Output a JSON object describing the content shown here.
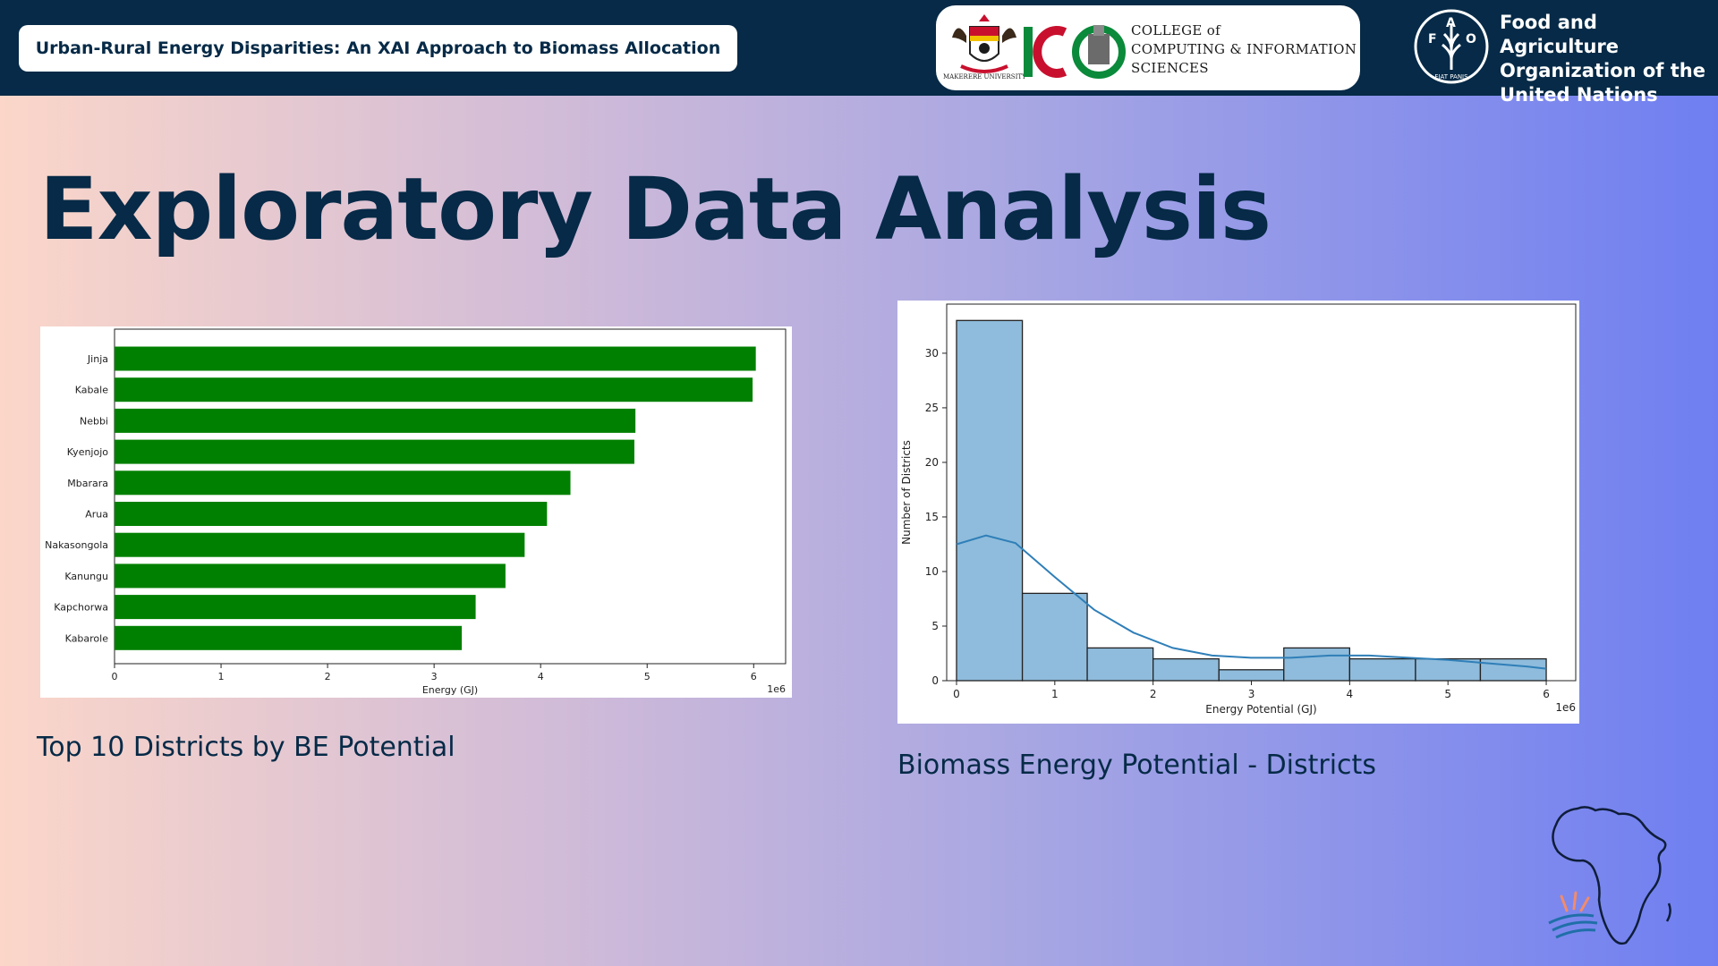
{
  "header": {
    "presentation_title": "Urban-Rural Energy Disparities: An XAI Approach to Biomass Allocation",
    "college_lines": [
      "COLLEGE of",
      "COMPUTING & INFORMATION",
      "SCIENCES"
    ],
    "university_label": "MAKERERE UNIVERSITY",
    "fao_lines": [
      "Food and Agriculture",
      "Organization of the",
      "United Nations"
    ],
    "fao_letters": [
      "F",
      "A",
      "O"
    ],
    "fao_motto": "FIAT PANIS"
  },
  "slide": {
    "heading": "Exploratory Data Analysis",
    "caption_left": "Top 10 Districts by BE Potential",
    "caption_right": "Biomass Energy Potential - Districts"
  },
  "colors": {
    "bar_green": "#008000",
    "hist_fill": "#8fbcdc",
    "kde_line": "#2f7fb8",
    "navy": "#062a47"
  },
  "chart_data": [
    {
      "type": "bar",
      "orientation": "horizontal",
      "categories": [
        "Jinja",
        "Kabale",
        "Nebbi",
        "Kyenjojo",
        "Mbarara",
        "Arua",
        "Nakasongola",
        "Kanungu",
        "Kapchorwa",
        "Kabarole"
      ],
      "values": [
        6.02,
        5.99,
        4.89,
        4.88,
        4.28,
        4.06,
        3.85,
        3.67,
        3.39,
        3.26
      ],
      "value_multiplier": "1e6",
      "xlabel": "Energy (GJ)",
      "ylabel": "",
      "xlim": [
        0,
        6.3
      ],
      "xticks": [
        "0",
        "1",
        "2",
        "3",
        "4",
        "5",
        "6"
      ],
      "grid": false,
      "legend": "none"
    },
    {
      "type": "histogram",
      "bin_edges": [
        0,
        0.67,
        1.33,
        2.0,
        2.67,
        3.33,
        4.0,
        4.67,
        5.33,
        6.0
      ],
      "counts": [
        33,
        8,
        3,
        2,
        1,
        3,
        2,
        2,
        2
      ],
      "kde": {
        "x": [
          0,
          0.3,
          0.6,
          1.0,
          1.4,
          1.8,
          2.2,
          2.6,
          3.0,
          3.4,
          3.8,
          4.2,
          4.6,
          5.0,
          5.4,
          5.8,
          6.0
        ],
        "y": [
          12.5,
          13.3,
          12.6,
          9.5,
          6.5,
          4.4,
          3.0,
          2.3,
          2.1,
          2.1,
          2.3,
          2.3,
          2.1,
          1.9,
          1.6,
          1.3,
          1.1
        ]
      },
      "value_multiplier": "1e6",
      "xlabel": "Energy Potential (GJ)",
      "ylabel": "Number of Districts",
      "xlim": [
        -0.1,
        6.3
      ],
      "ylim": [
        0,
        34.5
      ],
      "xticks": [
        "0",
        "1",
        "2",
        "3",
        "4",
        "5",
        "6"
      ],
      "yticks": [
        "0",
        "5",
        "10",
        "15",
        "20",
        "25",
        "30"
      ],
      "grid": false,
      "legend": "none"
    }
  ]
}
